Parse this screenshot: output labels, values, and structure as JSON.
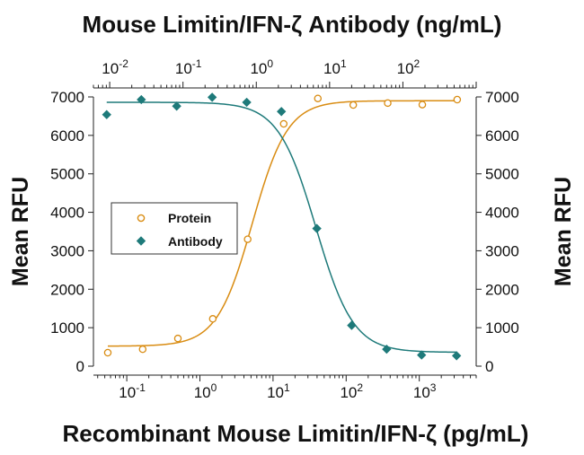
{
  "chart_data": {
    "type": "scatter",
    "top_xlabel": "Mouse Limitin/IFN-ζ Antibody (ng/mL)",
    "xlabel": "Recombinant Mouse Limitin/IFN-ζ (pg/mL)",
    "ylabel_left": "Mean RFU",
    "ylabel_right": "Mean RFU",
    "x_scale": "log",
    "xlim": [
      0.035,
      6000
    ],
    "x_top_scale": "log",
    "x_top_lim": [
      0.006,
      1000
    ],
    "ylim": [
      0,
      7000
    ],
    "y_ticks": [
      0,
      1000,
      2000,
      3000,
      4000,
      5000,
      6000,
      7000
    ],
    "bottom_ticks": [
      {
        "value": 0.1,
        "base": "10",
        "exp": "-1"
      },
      {
        "value": 1,
        "base": "10",
        "exp": "0"
      },
      {
        "value": 10,
        "base": "10",
        "exp": "1"
      },
      {
        "value": 100,
        "base": "10",
        "exp": "2"
      },
      {
        "value": 1000,
        "base": "10",
        "exp": "3"
      }
    ],
    "top_ticks": [
      {
        "value": 0.01,
        "base": "10",
        "exp": "-2"
      },
      {
        "value": 0.1,
        "base": "10",
        "exp": "-1"
      },
      {
        "value": 1,
        "base": "10",
        "exp": "0"
      },
      {
        "value": 10,
        "base": "10",
        "exp": "1"
      },
      {
        "value": 100,
        "base": "10",
        "exp": "2"
      }
    ],
    "legend_position": "middle-left",
    "grid": false,
    "series": [
      {
        "name": "Protein",
        "axis": "bottom",
        "marker": "open-circle",
        "color": "#d98c12",
        "points": [
          {
            "x": 0.055,
            "y": 350
          },
          {
            "x": 0.165,
            "y": 440
          },
          {
            "x": 0.5,
            "y": 720
          },
          {
            "x": 1.5,
            "y": 1230
          },
          {
            "x": 4.5,
            "y": 3300
          },
          {
            "x": 14,
            "y": 6300
          },
          {
            "x": 41,
            "y": 6960
          },
          {
            "x": 125,
            "y": 6790
          },
          {
            "x": 370,
            "y": 6840
          },
          {
            "x": 1100,
            "y": 6800
          },
          {
            "x": 3300,
            "y": 6930
          }
        ],
        "fit": {
          "bottom": 520,
          "top": 6900,
          "ec50": 5.2,
          "hill": 1.8
        }
      },
      {
        "name": "Antibody",
        "axis": "top",
        "marker": "filled-diamond",
        "color": "#1e7a7a",
        "points": [
          {
            "x": 0.0091,
            "y": 6540
          },
          {
            "x": 0.027,
            "y": 6930
          },
          {
            "x": 0.082,
            "y": 6760
          },
          {
            "x": 0.25,
            "y": 6990
          },
          {
            "x": 0.74,
            "y": 6860
          },
          {
            "x": 2.2,
            "y": 6620
          },
          {
            "x": 6.7,
            "y": 3580
          },
          {
            "x": 20,
            "y": 1060
          },
          {
            "x": 60,
            "y": 440
          },
          {
            "x": 180,
            "y": 290
          },
          {
            "x": 540,
            "y": 270
          }
        ],
        "fit": {
          "bottom": 360,
          "top": 6860,
          "ec50": 6.5,
          "hill": -1.7
        }
      }
    ]
  }
}
